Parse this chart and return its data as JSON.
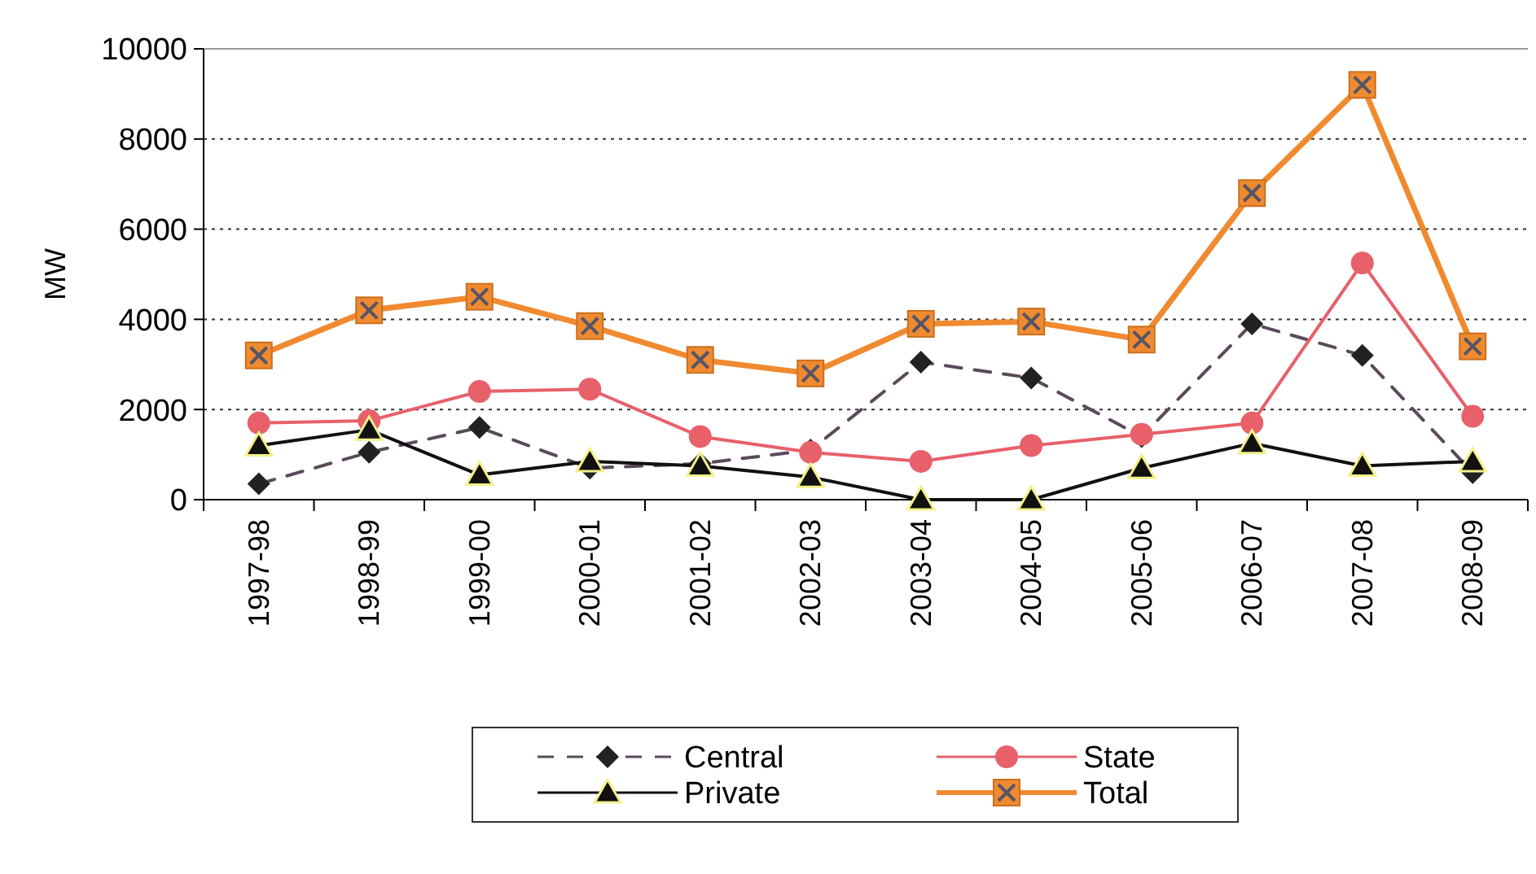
{
  "chart_data": {
    "type": "line",
    "ylabel": "MW",
    "categories": [
      "1997-98",
      "1998-99",
      "1999-00",
      "2000-01",
      "2001-02",
      "2002-03",
      "2003-04",
      "2004-05",
      "2005-06",
      "2006-07",
      "2007-08",
      "2008-09"
    ],
    "series": [
      {
        "name": "Central",
        "color": "#5a4a5a",
        "marker": "diamond",
        "line_style": "dashed",
        "values": [
          350,
          1050,
          1600,
          700,
          800,
          1100,
          3050,
          2700,
          1400,
          3900,
          3200,
          600
        ]
      },
      {
        "name": "State",
        "color": "#e8606a",
        "marker": "circle",
        "line_style": "solid",
        "values": [
          1700,
          1750,
          2400,
          2450,
          1400,
          1050,
          850,
          1200,
          1450,
          1700,
          5250,
          1850
        ]
      },
      {
        "name": "Private",
        "color": "#111111",
        "marker": "triangle",
        "line_style": "solid",
        "values": [
          1200,
          1550,
          550,
          850,
          750,
          500,
          0,
          0,
          700,
          1250,
          750,
          850
        ]
      },
      {
        "name": "Total",
        "color": "#f08a30",
        "marker": "square",
        "line_style": "solid",
        "values": [
          3200,
          4200,
          4500,
          3850,
          3100,
          2800,
          3900,
          3950,
          3550,
          6800,
          9200,
          3400
        ]
      }
    ],
    "ylim": [
      0,
      10000
    ],
    "yticks": [
      0,
      2000,
      4000,
      6000,
      8000,
      10000
    ],
    "grid": "y",
    "legend": "bottom"
  }
}
